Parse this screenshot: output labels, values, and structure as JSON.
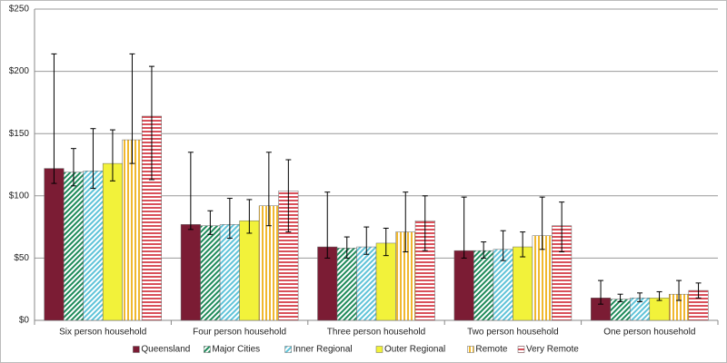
{
  "chart_data": {
    "type": "bar",
    "categories": [
      "Six person household",
      "Four person household",
      "Three person household",
      "Two person household",
      "One person household"
    ],
    "series": [
      {
        "name": "Queensland",
        "color": "#7b1c34",
        "pattern": "solid",
        "values": [
          122,
          77,
          59,
          56,
          18
        ],
        "low": [
          110,
          73,
          50,
          50,
          13
        ],
        "high": [
          214,
          135,
          103,
          99,
          32
        ]
      },
      {
        "name": "Major Cities",
        "color": "#1e8a5a",
        "pattern": "diagonal",
        "values": [
          119,
          76,
          58,
          56,
          17
        ],
        "low": [
          108,
          69,
          50,
          50,
          15
        ],
        "high": [
          138,
          88,
          67,
          63,
          21
        ]
      },
      {
        "name": "Inner Regional",
        "color": "#5fc3d8",
        "pattern": "diagonal",
        "values": [
          120,
          77,
          59,
          57,
          18
        ],
        "low": [
          106,
          66,
          53,
          48,
          15
        ],
        "high": [
          154,
          98,
          75,
          72,
          22
        ]
      },
      {
        "name": "Outer Regional",
        "color": "#f2f23a",
        "pattern": "solid",
        "values": [
          126,
          80,
          62,
          59,
          18
        ],
        "low": [
          112,
          70,
          52,
          51,
          16
        ],
        "high": [
          153,
          97,
          74,
          71,
          23
        ]
      },
      {
        "name": "Remote",
        "color": "#f0b830",
        "pattern": "vertical",
        "values": [
          145,
          92,
          71,
          68,
          21
        ],
        "low": [
          126,
          76,
          55,
          57,
          16
        ],
        "high": [
          214,
          135,
          103,
          99,
          32
        ]
      },
      {
        "name": "Very Remote",
        "color": "#d9505a",
        "pattern": "horizontal",
        "values": [
          164,
          104,
          80,
          76,
          24
        ],
        "low": [
          113,
          71,
          56,
          55,
          18
        ],
        "high": [
          204,
          129,
          100,
          95,
          30
        ]
      }
    ],
    "ylim": [
      0,
      250
    ],
    "yticks": [
      {
        "value": 0,
        "label": "$0"
      },
      {
        "value": 50,
        "label": "$50"
      },
      {
        "value": 100,
        "label": "$100"
      },
      {
        "value": 150,
        "label": "$150"
      },
      {
        "value": 200,
        "label": "$200"
      },
      {
        "value": 250,
        "label": "$250"
      }
    ],
    "grid": true,
    "legend": "bottom"
  }
}
